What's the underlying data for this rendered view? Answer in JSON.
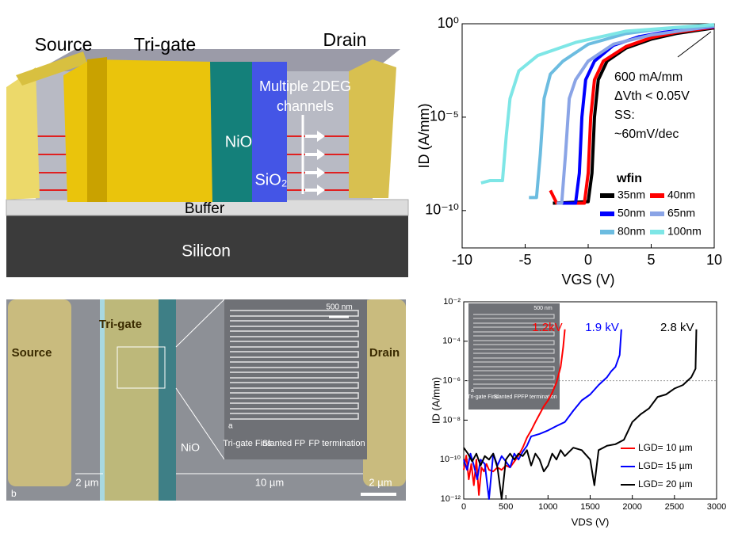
{
  "diagram": {
    "source": "Source",
    "tri_gate": "Tri-gate",
    "drain": "Drain",
    "channels_1": "Multiple 2DEG",
    "channels_2": "channels",
    "nio": "NiO",
    "sio2": "SiO₂",
    "buffer": "Buffer",
    "silicon": "Silicon"
  },
  "sem": {
    "source": "Source",
    "tri_gate": "Tri-gate",
    "drain": "Drain",
    "nio": "NiO",
    "scale": "500 nm",
    "panel_a": "a",
    "fins": "Tri-gate Fins",
    "slanted": "Slanted FP",
    "termination": "FP termination",
    "gap_left": "2 µm",
    "gap_mid": "10 µm",
    "gap_right": "2 µm",
    "panel_b": "b"
  },
  "chart_data": [
    {
      "type": "line",
      "log_y": true,
      "xlim": [
        -10,
        10
      ],
      "ylim": [
        1e-12,
        1
      ],
      "xticks": [
        -10,
        -5,
        0,
        5,
        10
      ],
      "yticks": [
        {
          "value": 1,
          "label": "10⁰"
        },
        {
          "value": 1e-05,
          "label": "10⁻⁵"
        },
        {
          "value": 1e-10,
          "label": "10⁻¹⁰"
        }
      ],
      "x_label": "VGS (V)",
      "y_label": "ID (A/mm)",
      "annotations": [
        "600 mA/mm",
        "ΔVth < 0.05V",
        "SS:",
        "~60mV/dec"
      ],
      "legend_title": "wfin",
      "series": [
        {
          "name": "35nm",
          "color": "#000000",
          "x": [
            -2.8,
            0,
            0.3,
            0.5,
            0.8,
            1.5,
            3,
            5,
            7,
            10
          ],
          "values": [
            2.5e-10,
            3e-10,
            1e-08,
            1e-05,
            0.001,
            0.01,
            0.05,
            0.15,
            0.3,
            0.6
          ]
        },
        {
          "name": "40nm",
          "color": "#ff0000",
          "x": [
            -3,
            -2.5,
            -0.3,
            0,
            0.2,
            0.5,
            1.2,
            3,
            5,
            7,
            10
          ],
          "values": [
            1.2e-09,
            2.5e-10,
            2.5e-10,
            1e-08,
            1e-05,
            0.001,
            0.01,
            0.06,
            0.18,
            0.35,
            0.65
          ]
        },
        {
          "name": "50nm",
          "color": "#0000ff",
          "x": [
            -2.2,
            -1,
            -0.7,
            -0.5,
            -0.2,
            0.5,
            2,
            4,
            6,
            10
          ],
          "values": [
            2.5e-10,
            2.5e-10,
            1e-08,
            1e-05,
            0.001,
            0.01,
            0.07,
            0.2,
            0.35,
            0.7
          ]
        },
        {
          "name": "65nm",
          "color": "#8aa4e6",
          "x": [
            -2.5,
            -2.1,
            -1.8,
            -1.5,
            -1,
            0,
            2,
            5,
            10
          ],
          "values": [
            2.5e-10,
            2.5e-10,
            1e-07,
            0.0001,
            0.001,
            0.01,
            0.08,
            0.25,
            0.75
          ]
        },
        {
          "name": "80nm",
          "color": "#6cbce0",
          "x": [
            -4.7,
            -4.1,
            -3.8,
            -3.5,
            -3,
            -2,
            0,
            3,
            6,
            10
          ],
          "values": [
            5e-10,
            5e-10,
            1e-07,
            0.0001,
            0.002,
            0.01,
            0.08,
            0.3,
            0.55,
            0.8
          ]
        },
        {
          "name": "100nm",
          "color": "#7ee6e6",
          "x": [
            -8.5,
            -7.8,
            -6.8,
            -6.5,
            -6.2,
            -5.5,
            -4,
            -1,
            3,
            10
          ],
          "values": [
            3e-09,
            4e-09,
            4e-09,
            1e-06,
            0.0001,
            0.003,
            0.02,
            0.1,
            0.4,
            0.9
          ]
        }
      ]
    },
    {
      "type": "line",
      "log_y": true,
      "xlim": [
        0,
        3000
      ],
      "ylim": [
        1e-12,
        0.01
      ],
      "xticks": [
        0,
        500,
        1000,
        1500,
        2000,
        2500,
        3000
      ],
      "yticks": [
        {
          "value": 0.01,
          "label": "10⁻²"
        },
        {
          "value": 0.0001,
          "label": "10⁻⁴"
        },
        {
          "value": 1e-06,
          "label": "10⁻⁶"
        },
        {
          "value": 1e-08,
          "label": "10⁻⁸"
        },
        {
          "value": 1e-10,
          "label": "10⁻¹⁰"
        },
        {
          "value": 1e-12,
          "label": "10⁻¹²"
        }
      ],
      "ref_line": 1e-06,
      "x_label": "VDS (V)",
      "y_label": "ID (A/mm)",
      "inset": {
        "scale": "500 nm",
        "panel": "a",
        "fins": "Tri-gate Fins",
        "slanted": "Slanted FP",
        "termination": "FP termination"
      },
      "series": [
        {
          "name": "LGD= 10 µm",
          "color": "#ff0000",
          "label": "1.2kV",
          "x": [
            0,
            30,
            60,
            90,
            120,
            150,
            180,
            210,
            240,
            270,
            300,
            350,
            400,
            450,
            500,
            550,
            600,
            650,
            700,
            750,
            800,
            850,
            900,
            950,
            1000,
            1050,
            1100,
            1150,
            1180,
            1200
          ],
          "values": [
            3e-11,
            1.6e-10,
            1e-11,
            6e-11,
            5e-12,
            1e-10,
            1.6e-12,
            4e-11,
            2.5e-11,
            6e-11,
            3e-11,
            2.5e-11,
            4e-11,
            3e-11,
            5e-11,
            4e-11,
            8e-11,
            1.6e-10,
            4e-10,
            1.3e-09,
            3e-09,
            8e-09,
            2e-08,
            5e-08,
            1e-07,
            2.5e-07,
            8e-07,
            5e-06,
            5e-05,
            0.0004
          ]
        },
        {
          "name": "LGD= 15 µm",
          "color": "#0000ff",
          "label": "1.9 kV",
          "x": [
            0,
            40,
            80,
            120,
            160,
            200,
            250,
            300,
            350,
            400,
            450,
            500,
            550,
            600,
            650,
            700,
            750,
            800,
            900,
            1000,
            1100,
            1200,
            1300,
            1400,
            1500,
            1600,
            1700,
            1750,
            1800,
            1850,
            1870
          ],
          "values": [
            1e-10,
            3e-11,
            2e-10,
            5e-11,
            1e-11,
            1e-10,
            6e-11,
            1e-12,
            2e-10,
            5e-11,
            1.5e-10,
            8e-11,
            4e-11,
            2e-10,
            1e-10,
            2.5e-10,
            5e-10,
            1.5e-09,
            2e-09,
            3e-09,
            5e-09,
            8e-09,
            3e-08,
            1e-07,
            2e-07,
            6e-07,
            1.5e-06,
            3e-06,
            5e-06,
            2e-05,
            0.0004
          ]
        },
        {
          "name": "LGD= 20 µm",
          "color": "#000000",
          "label": "2.8 kV",
          "x": [
            0,
            50,
            100,
            150,
            200,
            250,
            300,
            350,
            400,
            450,
            500,
            550,
            600,
            650,
            700,
            750,
            800,
            850,
            900,
            950,
            1000,
            1050,
            1100,
            1150,
            1200,
            1300,
            1400,
            1500,
            1550,
            1600,
            1700,
            1800,
            1900,
            2000,
            2100,
            2200,
            2300,
            2400,
            2500,
            2600,
            2700,
            2750,
            2760
          ],
          "values": [
            4e-10,
            2e-10,
            8e-11,
            2e-10,
            5e-11,
            1.5e-10,
            1e-10,
            2e-10,
            4e-11,
            1e-12,
            1e-10,
            2e-10,
            1e-10,
            2e-10,
            1.5e-10,
            3e-10,
            5e-11,
            2e-10,
            1e-10,
            2.5e-11,
            5e-11,
            2e-10,
            1e-10,
            3e-10,
            1.5e-10,
            4e-10,
            3e-10,
            1e-10,
            5e-12,
            3e-10,
            5e-10,
            6e-10,
            1e-09,
            8e-09,
            2e-08,
            4e-08,
            1.5e-07,
            2e-07,
            4e-07,
            6e-07,
            1.5e-06,
            4e-06,
            0.0004
          ]
        }
      ]
    }
  ]
}
